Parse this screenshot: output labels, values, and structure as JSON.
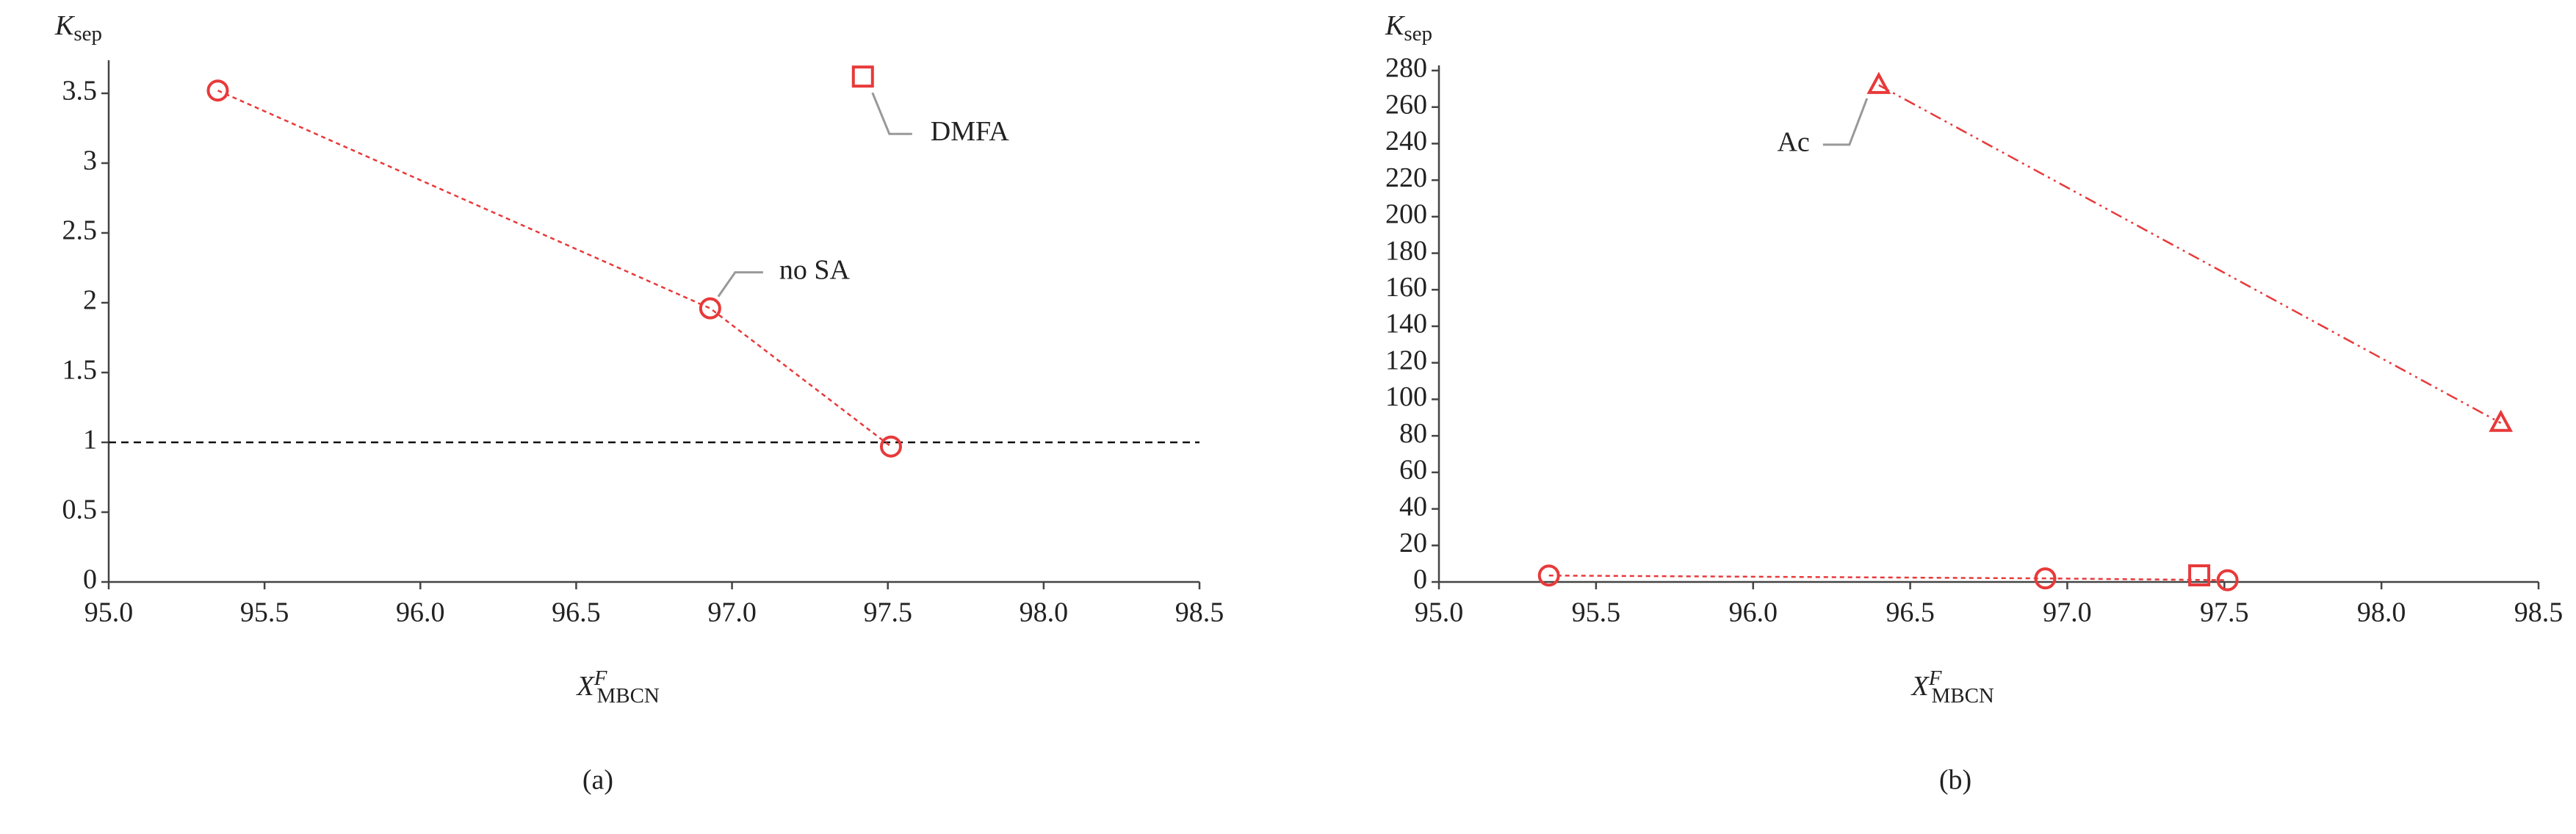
{
  "chart_data": [
    {
      "type": "line",
      "panel_label": "(a)",
      "y_label": "K",
      "y_label_sub": "sep",
      "x_label": "X",
      "x_label_sup": "F",
      "x_label_sub": "MBCN",
      "xlim": [
        95,
        98.5
      ],
      "xticks": [
        {
          "value": 95,
          "label": "95.0"
        },
        {
          "value": 95.5,
          "label": "95.5"
        },
        {
          "value": 96,
          "label": "96.0"
        },
        {
          "value": 96.5,
          "label": "96.5"
        },
        {
          "value": 97,
          "label": "97.0"
        },
        {
          "value": 97.5,
          "label": "97.5"
        },
        {
          "value": 98,
          "label": "98.0"
        },
        {
          "value": 98.5,
          "label": "98.5"
        }
      ],
      "ylim": [
        0,
        3.7
      ],
      "yticks": [
        0,
        0.5,
        1,
        1.5,
        2,
        2.5,
        3,
        3.5
      ],
      "hline": 1,
      "series": [
        {
          "name": "no SA",
          "color": "#e8393a",
          "marker": "circle",
          "line": "dotted",
          "x": [
            95.35,
            96.93,
            97.51
          ],
          "values": [
            3.52,
            1.96,
            0.97
          ]
        },
        {
          "name": "DMFA",
          "color": "#e8393a",
          "marker": "square",
          "line": "none",
          "x": [
            97.42
          ],
          "values": [
            3.62
          ]
        }
      ]
    },
    {
      "type": "line",
      "panel_label": "(b)",
      "y_label": "K",
      "y_label_sub": "sep",
      "x_label": "X",
      "x_label_sup": "F",
      "x_label_sub": "MBCN",
      "xlim": [
        95,
        98.5
      ],
      "xticks": [
        {
          "value": 95,
          "label": "95.0"
        },
        {
          "value": 95.5,
          "label": "95.5"
        },
        {
          "value": 96,
          "label": "96.0"
        },
        {
          "value": 96.5,
          "label": "96.5"
        },
        {
          "value": 97,
          "label": "97.0"
        },
        {
          "value": 97.5,
          "label": "97.5"
        },
        {
          "value": 98,
          "label": "98.0"
        },
        {
          "value": 98.5,
          "label": "98.5"
        }
      ],
      "ylim": [
        0,
        280
      ],
      "yticks": [
        0,
        20,
        40,
        60,
        80,
        100,
        120,
        140,
        160,
        180,
        200,
        220,
        240,
        260,
        280
      ],
      "series": [
        {
          "color": "#e8393a",
          "marker": "circle",
          "line": "dotted",
          "x": [
            95.35,
            96.93,
            97.51
          ],
          "values": [
            3.52,
            1.96,
            0.97
          ]
        },
        {
          "color": "#e8393a",
          "marker": "square",
          "line": "none",
          "x": [
            97.42
          ],
          "values": [
            3.62
          ]
        },
        {
          "name": "Ac",
          "color": "#e8393a",
          "marker": "triangle",
          "line": "dashdot",
          "x": [
            96.4,
            98.38
          ],
          "values": [
            272,
            87
          ]
        }
      ]
    }
  ]
}
